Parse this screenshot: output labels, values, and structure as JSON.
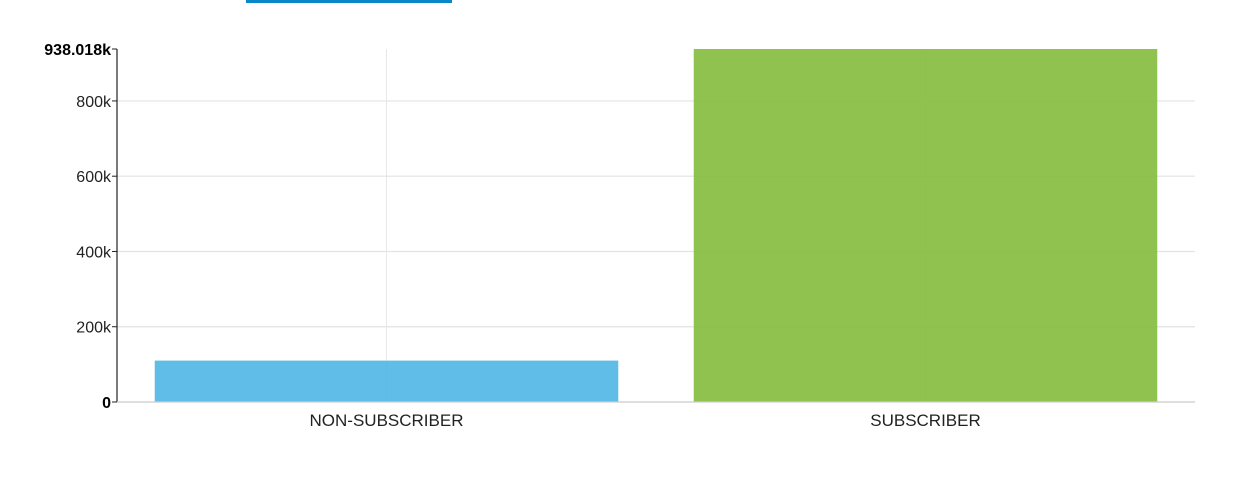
{
  "top_tab_accent_color": "#0a87c9",
  "chart_data": {
    "type": "bar",
    "categories": [
      "NON-SUBSCRIBER",
      "SUBSCRIBER"
    ],
    "values": [
      110000,
      938018
    ],
    "colors": [
      "#4fb6e4",
      "#84bb3c"
    ],
    "title": "",
    "xlabel": "",
    "ylabel": "",
    "ylim": [
      0,
      938018
    ],
    "yticks": [
      0,
      200000,
      400000,
      600000,
      800000,
      938018
    ],
    "ytick_labels": [
      "0",
      "200k",
      "400k",
      "600k",
      "800k",
      "938.018k"
    ],
    "grid": true,
    "legend": "none"
  }
}
